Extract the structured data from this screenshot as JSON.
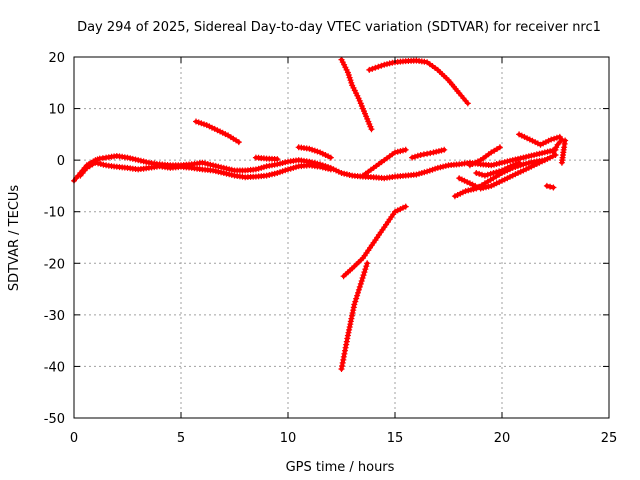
{
  "chart_data": {
    "type": "scatter",
    "title": "Day 294 of 2025, Sidereal Day-to-day VTEC variation (SDTVAR) for receiver nrc1",
    "xlabel": "GPS time / hours",
    "ylabel": "SDTVAR / TECUs",
    "xlim": [
      0,
      25
    ],
    "ylim": [
      -50,
      20
    ],
    "xticks": [
      0,
      5,
      10,
      15,
      20,
      25
    ],
    "xtick_labels": [
      "0",
      "5",
      "10",
      "15",
      "20",
      "25"
    ],
    "yticks": [
      -50,
      -40,
      -30,
      -20,
      -10,
      0,
      10,
      20
    ],
    "ytick_labels": [
      "-50",
      "-40",
      "-30",
      "-20",
      "-10",
      "0",
      "10",
      "20"
    ],
    "grid": true,
    "legend": "none",
    "marker": "plus",
    "color": "#ff0000",
    "series": [
      {
        "x": [
          0.0,
          0.3,
          0.6,
          0.8,
          1.0,
          1.2,
          1.5,
          2.0,
          2.5,
          3.0,
          3.5,
          4.0,
          4.5,
          5.0,
          5.5,
          6.0,
          6.5,
          7.0,
          7.5,
          8.0,
          8.5,
          9.0,
          9.5,
          10.0,
          10.5,
          11.0,
          11.5,
          12.0,
          12.5,
          13.0,
          13.5,
          14.0,
          14.5,
          15.0,
          15.5,
          16.0,
          16.5,
          17.0,
          17.5,
          18.0,
          18.5,
          19.0,
          19.5,
          20.0,
          20.5,
          21.0,
          21.5,
          22.0,
          22.5
        ],
        "y": [
          -4,
          -2.5,
          -1,
          -0.5,
          0,
          0.3,
          0.5,
          0.8,
          0.5,
          0,
          -0.5,
          -0.8,
          -1,
          -1,
          -0.8,
          -0.5,
          -1,
          -1.5,
          -2,
          -2,
          -1.8,
          -1.2,
          -0.8,
          -0.3,
          0,
          -0.3,
          -0.8,
          -1.5,
          -2.5,
          -3,
          -3.2,
          -3.3,
          -3.5,
          -3.2,
          -3,
          -2.8,
          -2.2,
          -1.5,
          -1,
          -0.8,
          -0.5,
          -0.8,
          -1,
          -0.5,
          0,
          0.5,
          1,
          1.5,
          2
        ]
      },
      {
        "x": [
          0.3,
          0.6,
          1.0,
          1.5,
          2.0,
          2.5,
          3.0,
          3.5,
          4.0,
          4.5,
          5.0,
          5.5,
          6.0,
          6.5,
          7.0,
          7.5,
          8.0,
          8.5,
          9.0,
          9.5,
          10.0,
          10.5,
          11.0,
          11.5,
          12.0
        ],
        "y": [
          -3,
          -1.5,
          -0.5,
          -1,
          -1.3,
          -1.5,
          -1.8,
          -1.5,
          -1.2,
          -1.5,
          -1.3,
          -1.5,
          -1.8,
          -2,
          -2.5,
          -3,
          -3.3,
          -3.2,
          -3,
          -2.5,
          -1.8,
          -1.2,
          -1,
          -1.3,
          -1.8
        ]
      },
      {
        "x": [
          5.7,
          6.2,
          6.7,
          7.2,
          7.7
        ],
        "y": [
          7.5,
          6.8,
          5.8,
          4.8,
          3.5
        ]
      },
      {
        "x": [
          8.5,
          9.0,
          9.5
        ],
        "y": [
          0.5,
          0.3,
          0.2
        ]
      },
      {
        "x": [
          10.5,
          11.0,
          11.5,
          12.0
        ],
        "y": [
          2.5,
          2.2,
          1.5,
          0.5
        ]
      },
      {
        "x": [
          12.5,
          12.8,
          13.0,
          13.3,
          13.6,
          13.9
        ],
        "y": [
          19.5,
          17,
          14.5,
          12,
          9,
          6
        ]
      },
      {
        "x": [
          12.5,
          12.8,
          13.1,
          13.4,
          13.7
        ],
        "y": [
          -40.5,
          -34,
          -28,
          -24,
          -20
        ]
      },
      {
        "x": [
          12.6,
          13.0,
          13.5,
          14.0,
          14.5,
          15.0,
          15.5
        ],
        "y": [
          -22.5,
          -21,
          -19,
          -16,
          -13,
          -10,
          -9
        ]
      },
      {
        "x": [
          13.5,
          14.0,
          14.5,
          15.0,
          15.5
        ],
        "y": [
          -3,
          -1.5,
          0,
          1.5,
          2
        ]
      },
      {
        "x": [
          13.8,
          14.5,
          15.0,
          15.5,
          16.0,
          16.5,
          17.0,
          17.5,
          18.0,
          18.4
        ],
        "y": [
          17.5,
          18.5,
          19,
          19.2,
          19.3,
          19,
          17.5,
          15.5,
          13,
          11
        ]
      },
      {
        "x": [
          15.8,
          16.2,
          16.8,
          17.3
        ],
        "y": [
          0.5,
          1,
          1.5,
          2
        ]
      },
      {
        "x": [
          17.8,
          18.3,
          18.8,
          19.2,
          19.6,
          20.0,
          20.5,
          21.0,
          21.5,
          22.0
        ],
        "y": [
          -7,
          -6,
          -5.5,
          -4.5,
          -3.5,
          -2.5,
          -1.5,
          -0.8,
          -0.3,
          0
        ]
      },
      {
        "x": [
          18.0,
          18.5,
          19.0,
          19.5,
          20.0,
          20.5,
          21.0,
          21.5,
          22.0,
          22.5
        ],
        "y": [
          -3.5,
          -4.5,
          -5.5,
          -5,
          -4,
          -3,
          -2,
          -1,
          0,
          1
        ]
      },
      {
        "x": [
          18.8,
          19.2,
          19.6,
          20.0,
          20.4,
          20.8
        ],
        "y": [
          -2.5,
          -3,
          -2.5,
          -2,
          -1.2,
          -0.5
        ]
      },
      {
        "x": [
          18.5,
          19.0,
          19.5,
          19.9
        ],
        "y": [
          -1,
          0,
          1.5,
          2.5
        ]
      },
      {
        "x": [
          20.8,
          21.3,
          21.8,
          22.3,
          22.7
        ],
        "y": [
          5,
          4,
          3,
          4,
          4.5
        ]
      },
      {
        "x": [
          22.4,
          22.6,
          22.8
        ],
        "y": [
          1.5,
          3,
          4
        ]
      },
      {
        "x": [
          22.1,
          22.4
        ],
        "y": [
          -5,
          -5.3
        ]
      },
      {
        "x": [
          22.8,
          22.85,
          22.9,
          22.95
        ],
        "y": [
          -0.5,
          1,
          2.5,
          3.8
        ]
      }
    ]
  }
}
